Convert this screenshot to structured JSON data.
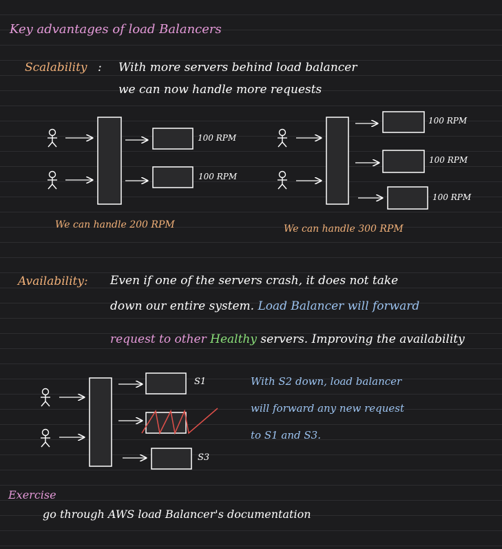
{
  "title": "Key advantages of load Balancers",
  "scalability": {
    "heading": "Scalability",
    "colon": ":",
    "line1": "With more servers behind load balancer",
    "line2": "we can now handle more requests",
    "left_caption": "We can handle 200 RPM",
    "right_caption": "We can handle 300 RPM",
    "left_rpm": [
      "100 RPM",
      "100 RPM"
    ],
    "right_rpm": [
      "100 RPM",
      "100 RPM",
      "100 RPM"
    ]
  },
  "availability": {
    "heading": "Availability:",
    "line1": "Even if one of the servers crash, it does not take",
    "line2_a": "down our entire system.",
    "line2_b": "Load Balancer will forward",
    "line3_a": "request to other",
    "line3_b": "Healthy",
    "line3_c": "servers. Improving the availability",
    "server_labels": [
      "S1",
      "S3"
    ],
    "note": [
      "With S2 down, load balancer",
      "will forward any new request",
      "to S1 and S3."
    ]
  },
  "exercise": {
    "heading": "Exercise",
    "text": "go through AWS load Balancer's documentation"
  },
  "colors": {
    "pink": "#e59ad9",
    "orange": "#f2b179",
    "blue": "#9cc3f0",
    "green": "#8be07a",
    "red": "#e0504a"
  }
}
